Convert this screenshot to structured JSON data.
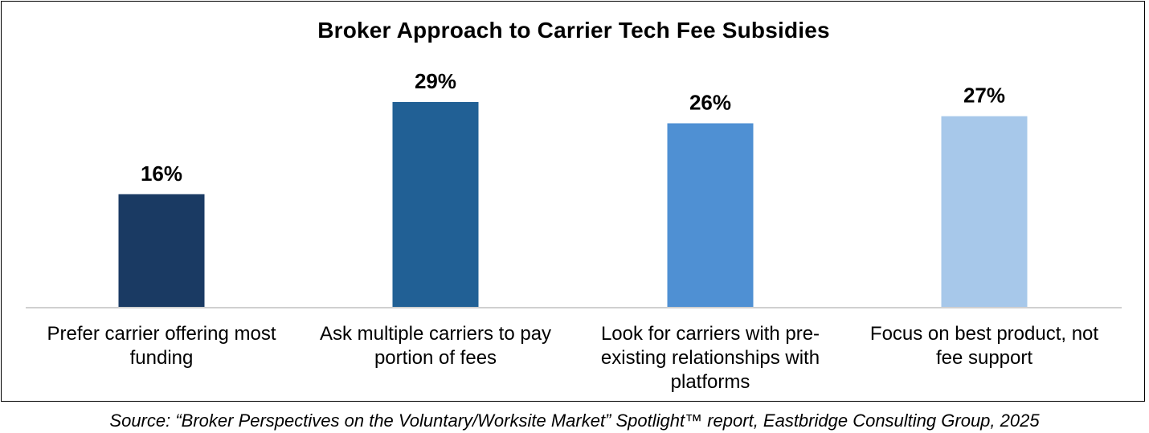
{
  "chart_data": {
    "type": "bar",
    "title": "Broker Approach to Carrier Tech Fee Subsidies",
    "categories": [
      [
        "Prefer carrier offering most",
        "funding"
      ],
      [
        "Ask multiple carriers to pay",
        "portion of fees"
      ],
      [
        "Look for carriers with pre-",
        "existing relationships with",
        "platforms"
      ],
      [
        "Focus on best product, not",
        "fee support"
      ]
    ],
    "values": [
      16,
      29,
      26,
      27
    ],
    "value_labels": [
      "16%",
      "29%",
      "26%",
      "27%"
    ],
    "colors": [
      "#1a3a63",
      "#216095",
      "#4f90d3",
      "#a7c8ea"
    ],
    "ylim": [
      0,
      29
    ],
    "grid": false,
    "legend": "none"
  },
  "source": "Source: “Broker Perspectives on the Voluntary/Worksite Market” Spotlight™ report, Eastbridge Consulting Group, 2025"
}
